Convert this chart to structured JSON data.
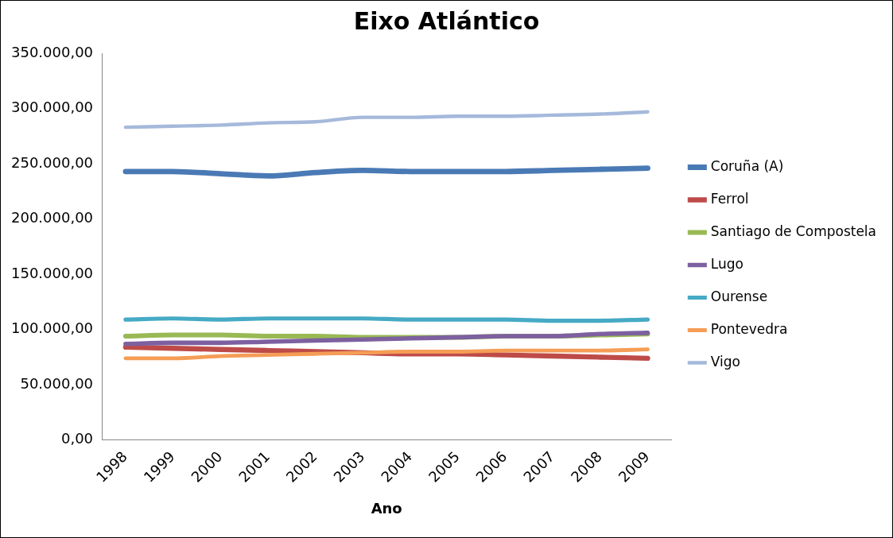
{
  "chart_data": {
    "type": "line",
    "title": "Eixo Atlántico",
    "xlabel": "Ano",
    "categories": [
      "1998",
      "1999",
      "2000",
      "2001",
      "2002",
      "2003",
      "2004",
      "2005",
      "2006",
      "2007",
      "2008",
      "2009"
    ],
    "series": [
      {
        "name": "Coruña (A)",
        "color": "#4a7ab5",
        "values": [
          243000,
          243000,
          241000,
          239000,
          242000,
          244000,
          243000,
          243000,
          243000,
          244000,
          245000,
          246000
        ]
      },
      {
        "name": "Ferrol",
        "color": "#be4b48",
        "values": [
          84000,
          83000,
          82000,
          81000,
          80000,
          79000,
          78000,
          78000,
          77000,
          76000,
          75000,
          74000
        ]
      },
      {
        "name": "Santiago de Compostela",
        "color": "#98b954",
        "values": [
          94000,
          95000,
          95000,
          94000,
          94000,
          93000,
          93000,
          93000,
          94000,
          94000,
          95000,
          96000
        ]
      },
      {
        "name": "Lugo",
        "color": "#7d60a0",
        "values": [
          87000,
          88000,
          88000,
          89000,
          90000,
          91000,
          92000,
          93000,
          94000,
          94000,
          96000,
          97000
        ]
      },
      {
        "name": "Ourense",
        "color": "#46aac5",
        "values": [
          109000,
          110000,
          109000,
          110000,
          110000,
          110000,
          109000,
          109000,
          109000,
          108000,
          108000,
          109000
        ]
      },
      {
        "name": "Pontevedra",
        "color": "#f59d56",
        "values": [
          74000,
          74000,
          76000,
          77000,
          78000,
          79000,
          80000,
          80000,
          81000,
          81000,
          81000,
          82000
        ]
      },
      {
        "name": "Vigo",
        "color": "#a5b9db",
        "values": [
          283000,
          284000,
          285000,
          287000,
          288000,
          292000,
          292000,
          293000,
          293000,
          294000,
          295000,
          297000
        ]
      }
    ],
    "ylim": [
      0,
      350000
    ],
    "yticks": [
      {
        "value": 0,
        "label": "0,00"
      },
      {
        "value": 50000,
        "label": "50.000,00"
      },
      {
        "value": 100000,
        "label": "100.000,00"
      },
      {
        "value": 150000,
        "label": "150.000,00"
      },
      {
        "value": 200000,
        "label": "200.000,00"
      },
      {
        "value": 250000,
        "label": "250.000,00"
      },
      {
        "value": 300000,
        "label": "300.000,00"
      },
      {
        "value": 350000,
        "label": "350.000,00"
      }
    ],
    "grid": false,
    "legend": "right",
    "marker": "none",
    "line_style": "solid"
  }
}
